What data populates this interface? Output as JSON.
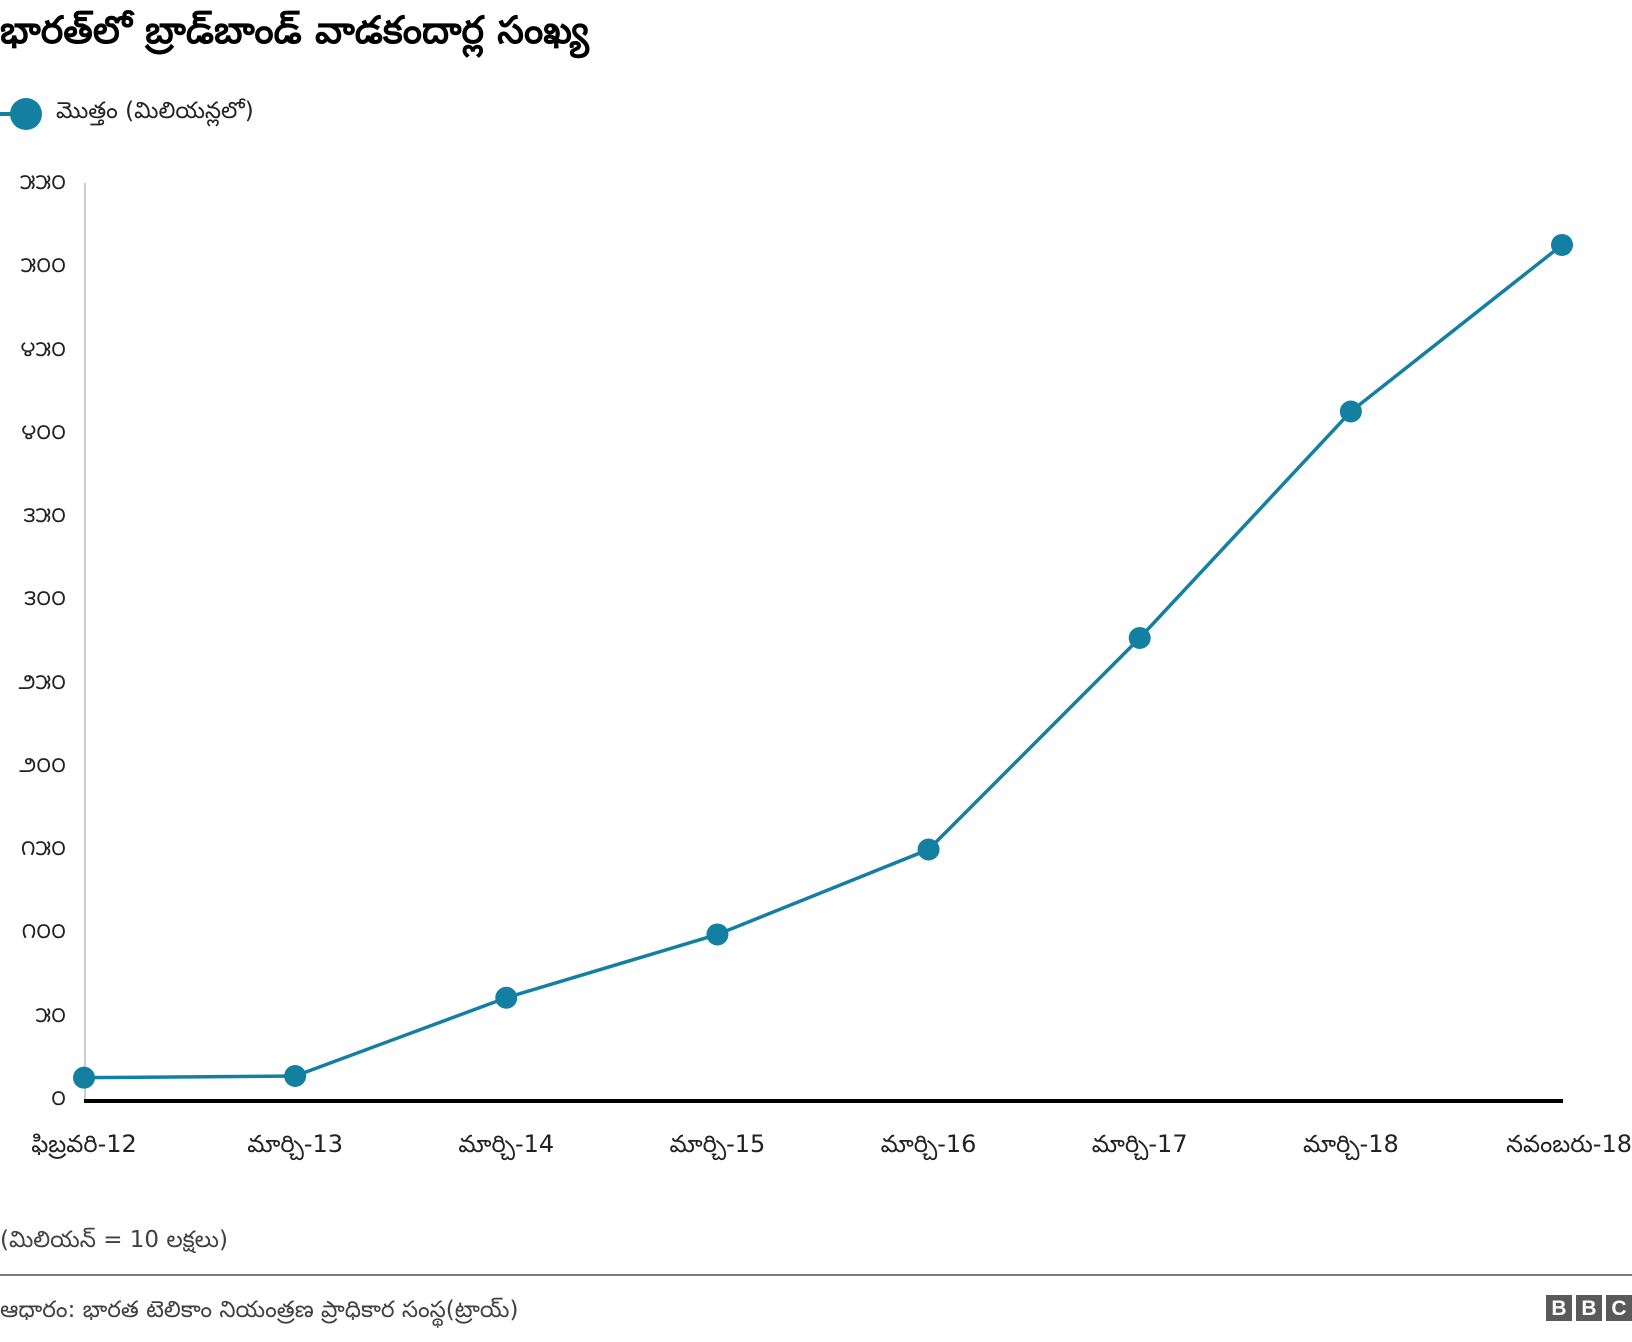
{
  "title": "భారత్‌లో బ్రాడ్‌బాండ్ వాడకందార్ల సంఖ్య",
  "legend": {
    "label": "మొత్తం (మిలియన్లలో)",
    "color": "#1380A1"
  },
  "y_ticks": [
    "౫౫౦",
    "౫౦౦",
    "౪౫౦",
    "౪౦౦",
    "౩౫౦",
    "౩౦౦",
    "౨౫౦",
    "౨౦౦",
    "౧౫౦",
    "౧౦౦",
    "౫౦",
    "౦"
  ],
  "x_ticks": [
    "ఫిబ్రవరి-12",
    "మార్చి-13",
    "మార్చి-14",
    "మార్చి-15",
    "మార్చి-16",
    "మార్చి-17",
    "మార్చి-18",
    "నవంబరు-18"
  ],
  "note": "(మిలియన్ = 10 లక్షలు)",
  "source": "ఆధారం: భారత టెలికాం నియంత్రణ ప్రాధికార సంస్థ(ట్రాయ్)",
  "brand": [
    "B",
    "B",
    "C"
  ],
  "chart_data": {
    "type": "line",
    "title": "భారత్‌లో బ్రాడ్‌బాండ్ వాడకందార్ల సంఖ్య",
    "xlabel": "",
    "ylabel": "మొత్తం (మిలియన్లలో)",
    "categories": [
      "ఫిబ్రవరి-12",
      "మార్చి-13",
      "మార్చి-14",
      "మార్చి-15",
      "మార్చి-16",
      "మార్చి-17",
      "మార్చి-18",
      "నవంబరు-18"
    ],
    "series": [
      {
        "name": "మొత్తం (మిలియన్లలో)",
        "color": "#1380A1",
        "values": [
          14,
          15,
          62,
          100,
          151,
          278,
          414,
          514
        ]
      }
    ],
    "ylim": [
      0,
      550
    ],
    "y_tick_step": 50,
    "grid": false,
    "legend_position": "top-left",
    "annotations": [
      "(మిలియన్ = 10 లక్షలు)"
    ]
  }
}
